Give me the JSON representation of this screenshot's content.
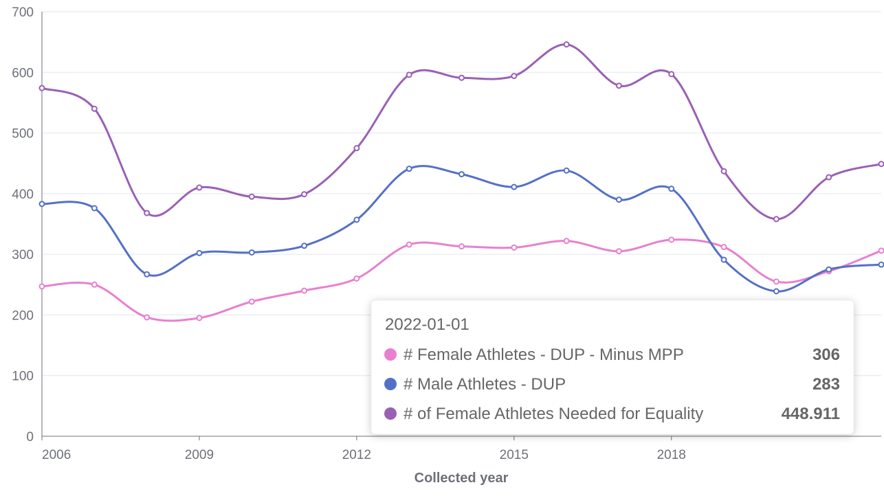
{
  "chart_data": {
    "type": "line",
    "x": [
      2006,
      2007,
      2008,
      2009,
      2010,
      2011,
      2012,
      2013,
      2014,
      2015,
      2016,
      2017,
      2018,
      2019,
      2020,
      2021,
      2022
    ],
    "series": [
      {
        "name": "# Female Athletes - DUP - Minus MPP",
        "color": "#e880cf",
        "values": [
          247,
          250,
          196,
          195,
          222,
          240,
          260,
          316,
          313,
          311,
          322,
          305,
          324,
          312,
          255,
          272,
          306
        ]
      },
      {
        "name": "# Male Athletes - DUP",
        "color": "#5470c6",
        "values": [
          383,
          376,
          267,
          302,
          303,
          314,
          357,
          441,
          432,
          411,
          438,
          390,
          408,
          291,
          239,
          275,
          283
        ]
      },
      {
        "name": "# of Female Athletes Needed for Equality",
        "color": "#9a60b4",
        "values": [
          574,
          540,
          368,
          410,
          395,
          399,
          475,
          596,
          591,
          594,
          646,
          578,
          597,
          437,
          358,
          427,
          448.911
        ]
      }
    ],
    "xlim": [
      2006,
      2022
    ],
    "xticks": [
      2006,
      2009,
      2012,
      2015,
      2018
    ],
    "ylim": [
      0,
      700
    ],
    "yticks": [
      0,
      100,
      200,
      300,
      400,
      500,
      600,
      700
    ],
    "grid": true,
    "x_label": "Collected year",
    "tooltip": {
      "title": "2022-01-01"
    }
  }
}
